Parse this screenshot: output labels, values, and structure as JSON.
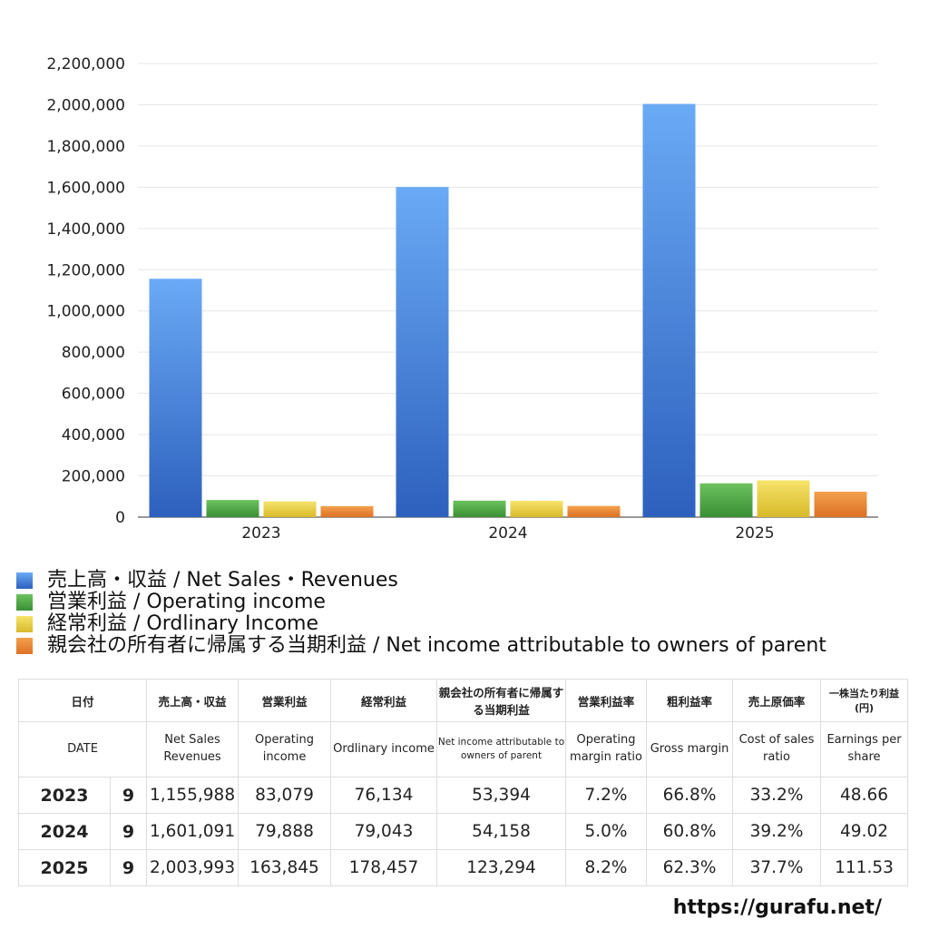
{
  "chart_data": {
    "type": "bar",
    "categories": [
      "2023",
      "2024",
      "2025"
    ],
    "series": [
      {
        "name": "売上高・収益 / Net Sales・Revenues",
        "values": [
          1155988,
          1601091,
          2003993
        ],
        "color_top": "#6aaaf5",
        "color_bottom": "#2d60bd"
      },
      {
        "name": "営業利益 / Operating income",
        "values": [
          83079,
          79888,
          163845
        ],
        "color_top": "#6cc25e",
        "color_bottom": "#3a8f34"
      },
      {
        "name": "経常利益 / Ordlinary Income",
        "values": [
          76134,
          79043,
          178457
        ],
        "color_top": "#f6e36a",
        "color_bottom": "#d8b92a"
      },
      {
        "name": "親会社の所有者に帰属する当期利益 / Net income attributable to owners of parent",
        "values": [
          53394,
          54158,
          123294
        ],
        "color_top": "#f3a04c",
        "color_bottom": "#dd7125"
      }
    ],
    "ylim": [
      0,
      2200000
    ],
    "yticks": [
      "0",
      "200,000",
      "400,000",
      "600,000",
      "800,000",
      "1,000,000",
      "1,200,000",
      "1,400,000",
      "1,600,000",
      "1,800,000",
      "2,000,000",
      "2,200,000"
    ],
    "grid": true,
    "legend_position": "bottom"
  },
  "table": {
    "header_jp": [
      "日付",
      "売上高・収益",
      "営業利益",
      "経常利益",
      "親会社の所有者に帰属する当期利益",
      "営業利益率",
      "粗利益率",
      "売上原価率",
      "一株当たり利益(円)"
    ],
    "header_en": [
      "DATE",
      "Net Sales Revenues",
      "Operating income",
      "Ordlinary income",
      "Net income attributable to owners of parent",
      "Operating margin ratio",
      "Gross margin",
      "Cost of sales ratio",
      "Earnings per share"
    ],
    "rows": [
      {
        "year": "2023",
        "month": "9",
        "sales": "1,155,988",
        "op": "83,079",
        "ord": "76,134",
        "net": "53,394",
        "opm": "7.2%",
        "gm": "66.8%",
        "cos": "33.2%",
        "eps": "48.66"
      },
      {
        "year": "2024",
        "month": "9",
        "sales": "1,601,091",
        "op": "79,888",
        "ord": "79,043",
        "net": "54,158",
        "opm": "5.0%",
        "gm": "60.8%",
        "cos": "39.2%",
        "eps": "49.02"
      },
      {
        "year": "2025",
        "month": "9",
        "sales": "2,003,993",
        "op": "163,845",
        "ord": "178,457",
        "net": "123,294",
        "opm": "8.2%",
        "gm": "62.3%",
        "cos": "37.7%",
        "eps": "111.53"
      }
    ]
  },
  "site_url": "https://gurafu.net/"
}
